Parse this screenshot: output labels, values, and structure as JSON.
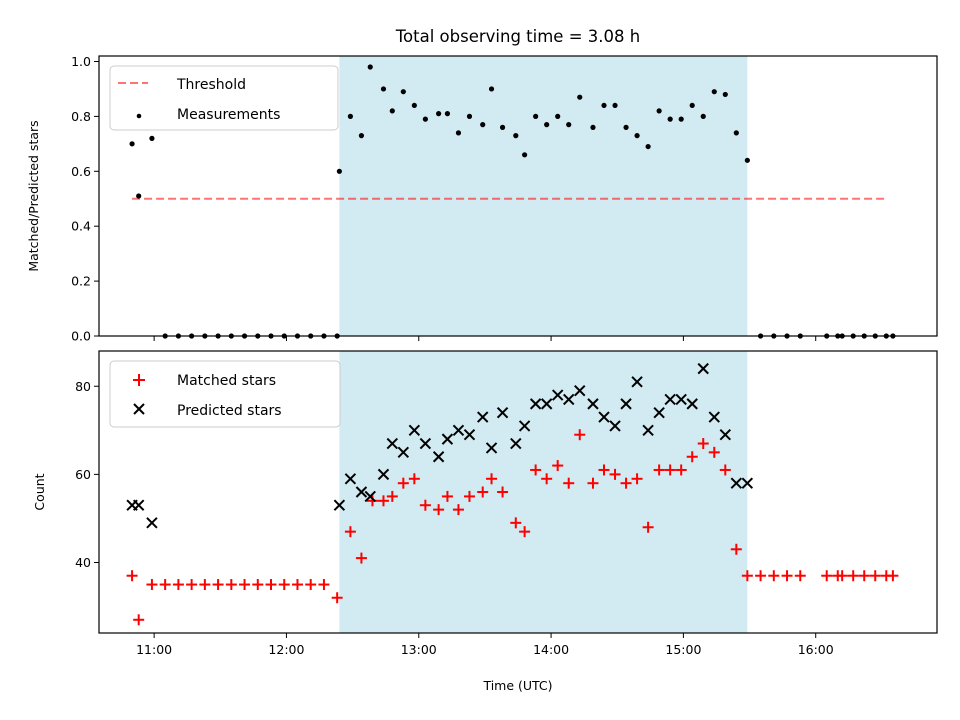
{
  "title": "Total observing time = 3.08 h",
  "colors": {
    "shade": "#add8e6",
    "threshold": "#ff0000",
    "measurements": "#000000",
    "matched": "#ff0000",
    "predicted": "#000000"
  },
  "x_axis": {
    "label": "Time (UTC)",
    "ticks": [
      {
        "value": "11:00",
        "label": "11:00"
      },
      {
        "value": "12:00",
        "label": "12:00"
      },
      {
        "value": "13:00",
        "label": "13:00"
      },
      {
        "value": "14:00",
        "label": "14:00"
      },
      {
        "value": "15:00",
        "label": "15:00"
      },
      {
        "value": "16:00",
        "label": "16:00"
      }
    ],
    "range": [
      "10:35",
      "16:55"
    ]
  },
  "chart_data": [
    {
      "type": "scatter",
      "title": "Total observing time = 3.08 h",
      "xlabel": "",
      "ylabel": "Matched/Predicted stars",
      "ylim": [
        0.0,
        1.02
      ],
      "yticks": [
        "0.0",
        "0.2",
        "0.4",
        "0.6",
        "0.8",
        "1.0"
      ],
      "legend_position": "top-left",
      "shaded_interval": [
        "12:24",
        "15:29"
      ],
      "threshold": {
        "name": "Threshold",
        "x": [
          "10:50",
          "16:32"
        ],
        "y": 0.5
      },
      "series": [
        {
          "name": "Measurements",
          "points": [
            [
              "10:50",
              0.7
            ],
            [
              "10:53",
              0.51
            ],
            [
              "10:59",
              0.72
            ],
            [
              "11:05",
              0.0
            ],
            [
              "11:11",
              0.0
            ],
            [
              "11:17",
              0.0
            ],
            [
              "11:23",
              0.0
            ],
            [
              "11:29",
              0.0
            ],
            [
              "11:35",
              0.0
            ],
            [
              "11:41",
              0.0
            ],
            [
              "11:47",
              0.0
            ],
            [
              "11:53",
              0.0
            ],
            [
              "11:59",
              0.0
            ],
            [
              "12:05",
              0.0
            ],
            [
              "12:11",
              0.0
            ],
            [
              "12:17",
              0.0
            ],
            [
              "12:23",
              0.0
            ],
            [
              "12:24",
              0.6
            ],
            [
              "12:29",
              0.8
            ],
            [
              "12:34",
              0.73
            ],
            [
              "12:38",
              0.98
            ],
            [
              "12:44",
              0.9
            ],
            [
              "12:48",
              0.82
            ],
            [
              "12:53",
              0.89
            ],
            [
              "12:58",
              0.84
            ],
            [
              "13:03",
              0.79
            ],
            [
              "13:09",
              0.81
            ],
            [
              "13:13",
              0.81
            ],
            [
              "13:18",
              0.74
            ],
            [
              "13:23",
              0.8
            ],
            [
              "13:29",
              0.77
            ],
            [
              "13:33",
              0.9
            ],
            [
              "13:38",
              0.76
            ],
            [
              "13:44",
              0.73
            ],
            [
              "13:48",
              0.66
            ],
            [
              "13:53",
              0.8
            ],
            [
              "13:58",
              0.77
            ],
            [
              "14:03",
              0.8
            ],
            [
              "14:08",
              0.77
            ],
            [
              "14:13",
              0.87
            ],
            [
              "14:19",
              0.76
            ],
            [
              "14:24",
              0.84
            ],
            [
              "14:29",
              0.84
            ],
            [
              "14:34",
              0.76
            ],
            [
              "14:39",
              0.73
            ],
            [
              "14:44",
              0.69
            ],
            [
              "14:49",
              0.82
            ],
            [
              "14:54",
              0.79
            ],
            [
              "14:59",
              0.79
            ],
            [
              "15:04",
              0.84
            ],
            [
              "15:09",
              0.8
            ],
            [
              "15:14",
              0.89
            ],
            [
              "15:19",
              0.88
            ],
            [
              "15:24",
              0.74
            ],
            [
              "15:29",
              0.64
            ],
            [
              "15:35",
              0.0
            ],
            [
              "15:41",
              0.0
            ],
            [
              "15:47",
              0.0
            ],
            [
              "15:53",
              0.0
            ],
            [
              "16:05",
              0.0
            ],
            [
              "16:10",
              0.0
            ],
            [
              "16:12",
              0.0
            ],
            [
              "16:17",
              0.0
            ],
            [
              "16:22",
              0.0
            ],
            [
              "16:27",
              0.0
            ],
            [
              "16:32",
              0.0
            ],
            [
              "16:35",
              0.0
            ]
          ]
        }
      ]
    },
    {
      "type": "scatter",
      "xlabel": "Time (UTC)",
      "ylabel": "Count",
      "ylim": [
        24,
        88
      ],
      "yticks": [
        "40",
        "60",
        "80"
      ],
      "legend_position": "top-left",
      "shaded_interval": [
        "12:24",
        "15:29"
      ],
      "series": [
        {
          "name": "Matched stars",
          "marker": "plus",
          "points": [
            [
              "10:50",
              37
            ],
            [
              "10:53",
              27
            ],
            [
              "10:59",
              35
            ],
            [
              "11:05",
              35
            ],
            [
              "11:11",
              35
            ],
            [
              "11:17",
              35
            ],
            [
              "11:23",
              35
            ],
            [
              "11:29",
              35
            ],
            [
              "11:35",
              35
            ],
            [
              "11:41",
              35
            ],
            [
              "11:47",
              35
            ],
            [
              "11:53",
              35
            ],
            [
              "11:59",
              35
            ],
            [
              "12:05",
              35
            ],
            [
              "12:11",
              35
            ],
            [
              "12:17",
              35
            ],
            [
              "12:23",
              32
            ],
            [
              "12:29",
              47
            ],
            [
              "12:34",
              41
            ],
            [
              "12:39",
              54
            ],
            [
              "12:44",
              54
            ],
            [
              "12:48",
              55
            ],
            [
              "12:53",
              58
            ],
            [
              "12:58",
              59
            ],
            [
              "13:03",
              53
            ],
            [
              "13:09",
              52
            ],
            [
              "13:13",
              55
            ],
            [
              "13:18",
              52
            ],
            [
              "13:23",
              55
            ],
            [
              "13:29",
              56
            ],
            [
              "13:33",
              59
            ],
            [
              "13:38",
              56
            ],
            [
              "13:44",
              49
            ],
            [
              "13:48",
              47
            ],
            [
              "13:53",
              61
            ],
            [
              "13:58",
              59
            ],
            [
              "14:03",
              62
            ],
            [
              "14:08",
              58
            ],
            [
              "14:13",
              69
            ],
            [
              "14:19",
              58
            ],
            [
              "14:24",
              61
            ],
            [
              "14:29",
              60
            ],
            [
              "14:34",
              58
            ],
            [
              "14:39",
              59
            ],
            [
              "14:44",
              48
            ],
            [
              "14:49",
              61
            ],
            [
              "14:54",
              61
            ],
            [
              "14:59",
              61
            ],
            [
              "15:04",
              64
            ],
            [
              "15:09",
              67
            ],
            [
              "15:14",
              65
            ],
            [
              "15:19",
              61
            ],
            [
              "15:24",
              43
            ],
            [
              "15:29",
              37
            ],
            [
              "15:35",
              37
            ],
            [
              "15:41",
              37
            ],
            [
              "15:47",
              37
            ],
            [
              "15:53",
              37
            ],
            [
              "16:05",
              37
            ],
            [
              "16:10",
              37
            ],
            [
              "16:12",
              37
            ],
            [
              "16:17",
              37
            ],
            [
              "16:22",
              37
            ],
            [
              "16:27",
              37
            ],
            [
              "16:32",
              37
            ],
            [
              "16:35",
              37
            ]
          ]
        },
        {
          "name": "Predicted stars",
          "marker": "x",
          "points": [
            [
              "10:50",
              53
            ],
            [
              "10:53",
              53
            ],
            [
              "10:59",
              49
            ],
            [
              "12:24",
              53
            ],
            [
              "12:29",
              59
            ],
            [
              "12:34",
              56
            ],
            [
              "12:38",
              55
            ],
            [
              "12:44",
              60
            ],
            [
              "12:48",
              67
            ],
            [
              "12:53",
              65
            ],
            [
              "12:58",
              70
            ],
            [
              "13:03",
              67
            ],
            [
              "13:09",
              64
            ],
            [
              "13:13",
              68
            ],
            [
              "13:18",
              70
            ],
            [
              "13:23",
              69
            ],
            [
              "13:29",
              73
            ],
            [
              "13:33",
              66
            ],
            [
              "13:38",
              74
            ],
            [
              "13:44",
              67
            ],
            [
              "13:48",
              71
            ],
            [
              "13:53",
              76
            ],
            [
              "13:58",
              76
            ],
            [
              "14:03",
              78
            ],
            [
              "14:08",
              77
            ],
            [
              "14:13",
              79
            ],
            [
              "14:19",
              76
            ],
            [
              "14:24",
              73
            ],
            [
              "14:29",
              71
            ],
            [
              "14:34",
              76
            ],
            [
              "14:39",
              81
            ],
            [
              "14:44",
              70
            ],
            [
              "14:49",
              74
            ],
            [
              "14:54",
              77
            ],
            [
              "14:59",
              77
            ],
            [
              "15:04",
              76
            ],
            [
              "15:09",
              84
            ],
            [
              "15:14",
              73
            ],
            [
              "15:19",
              69
            ],
            [
              "15:24",
              58
            ],
            [
              "15:29",
              58
            ]
          ]
        }
      ]
    }
  ]
}
